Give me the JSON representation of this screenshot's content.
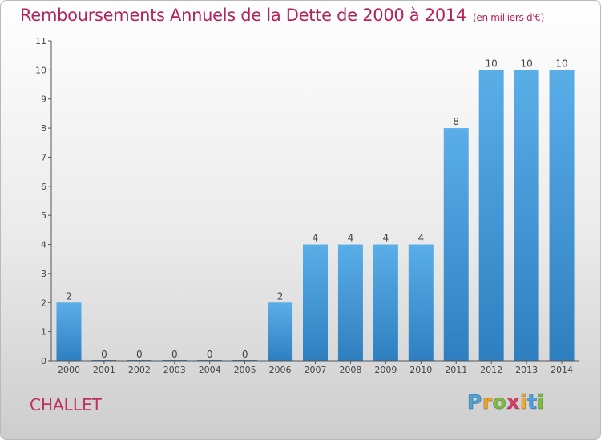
{
  "title": "Remboursements Annuels de la Dette de 2000 à 2014",
  "unit": "(en milliers d'€)",
  "place": "CHALLET",
  "brand": {
    "letters": [
      "P",
      "r",
      "o",
      "x",
      "i",
      "t",
      "i"
    ],
    "colors": [
      "#4aa3df",
      "#f7a823",
      "#7bbf3d",
      "#e23a6a",
      "#f7a823",
      "#4aa3df",
      "#7bbf3d"
    ]
  },
  "colors": {
    "bar_light": "#5aaee8",
    "bar_dark": "#2e7fc0",
    "title": "#b3235a",
    "axis": "#555555"
  },
  "chart_data": {
    "type": "bar",
    "title": "Remboursements Annuels de la Dette de 2000 à 2014",
    "categories": [
      "2000",
      "2001",
      "2002",
      "2003",
      "2004",
      "2005",
      "2006",
      "2007",
      "2008",
      "2009",
      "2010",
      "2011",
      "2012",
      "2013",
      "2014"
    ],
    "values": [
      2,
      0,
      0,
      0,
      0,
      0,
      2,
      4,
      4,
      4,
      4,
      8,
      10,
      10,
      10
    ],
    "ylim": [
      0,
      11
    ],
    "yticks": [
      0,
      1,
      2,
      3,
      4,
      5,
      6,
      7,
      8,
      9,
      10,
      11
    ],
    "grid": false,
    "data_labels": true
  }
}
